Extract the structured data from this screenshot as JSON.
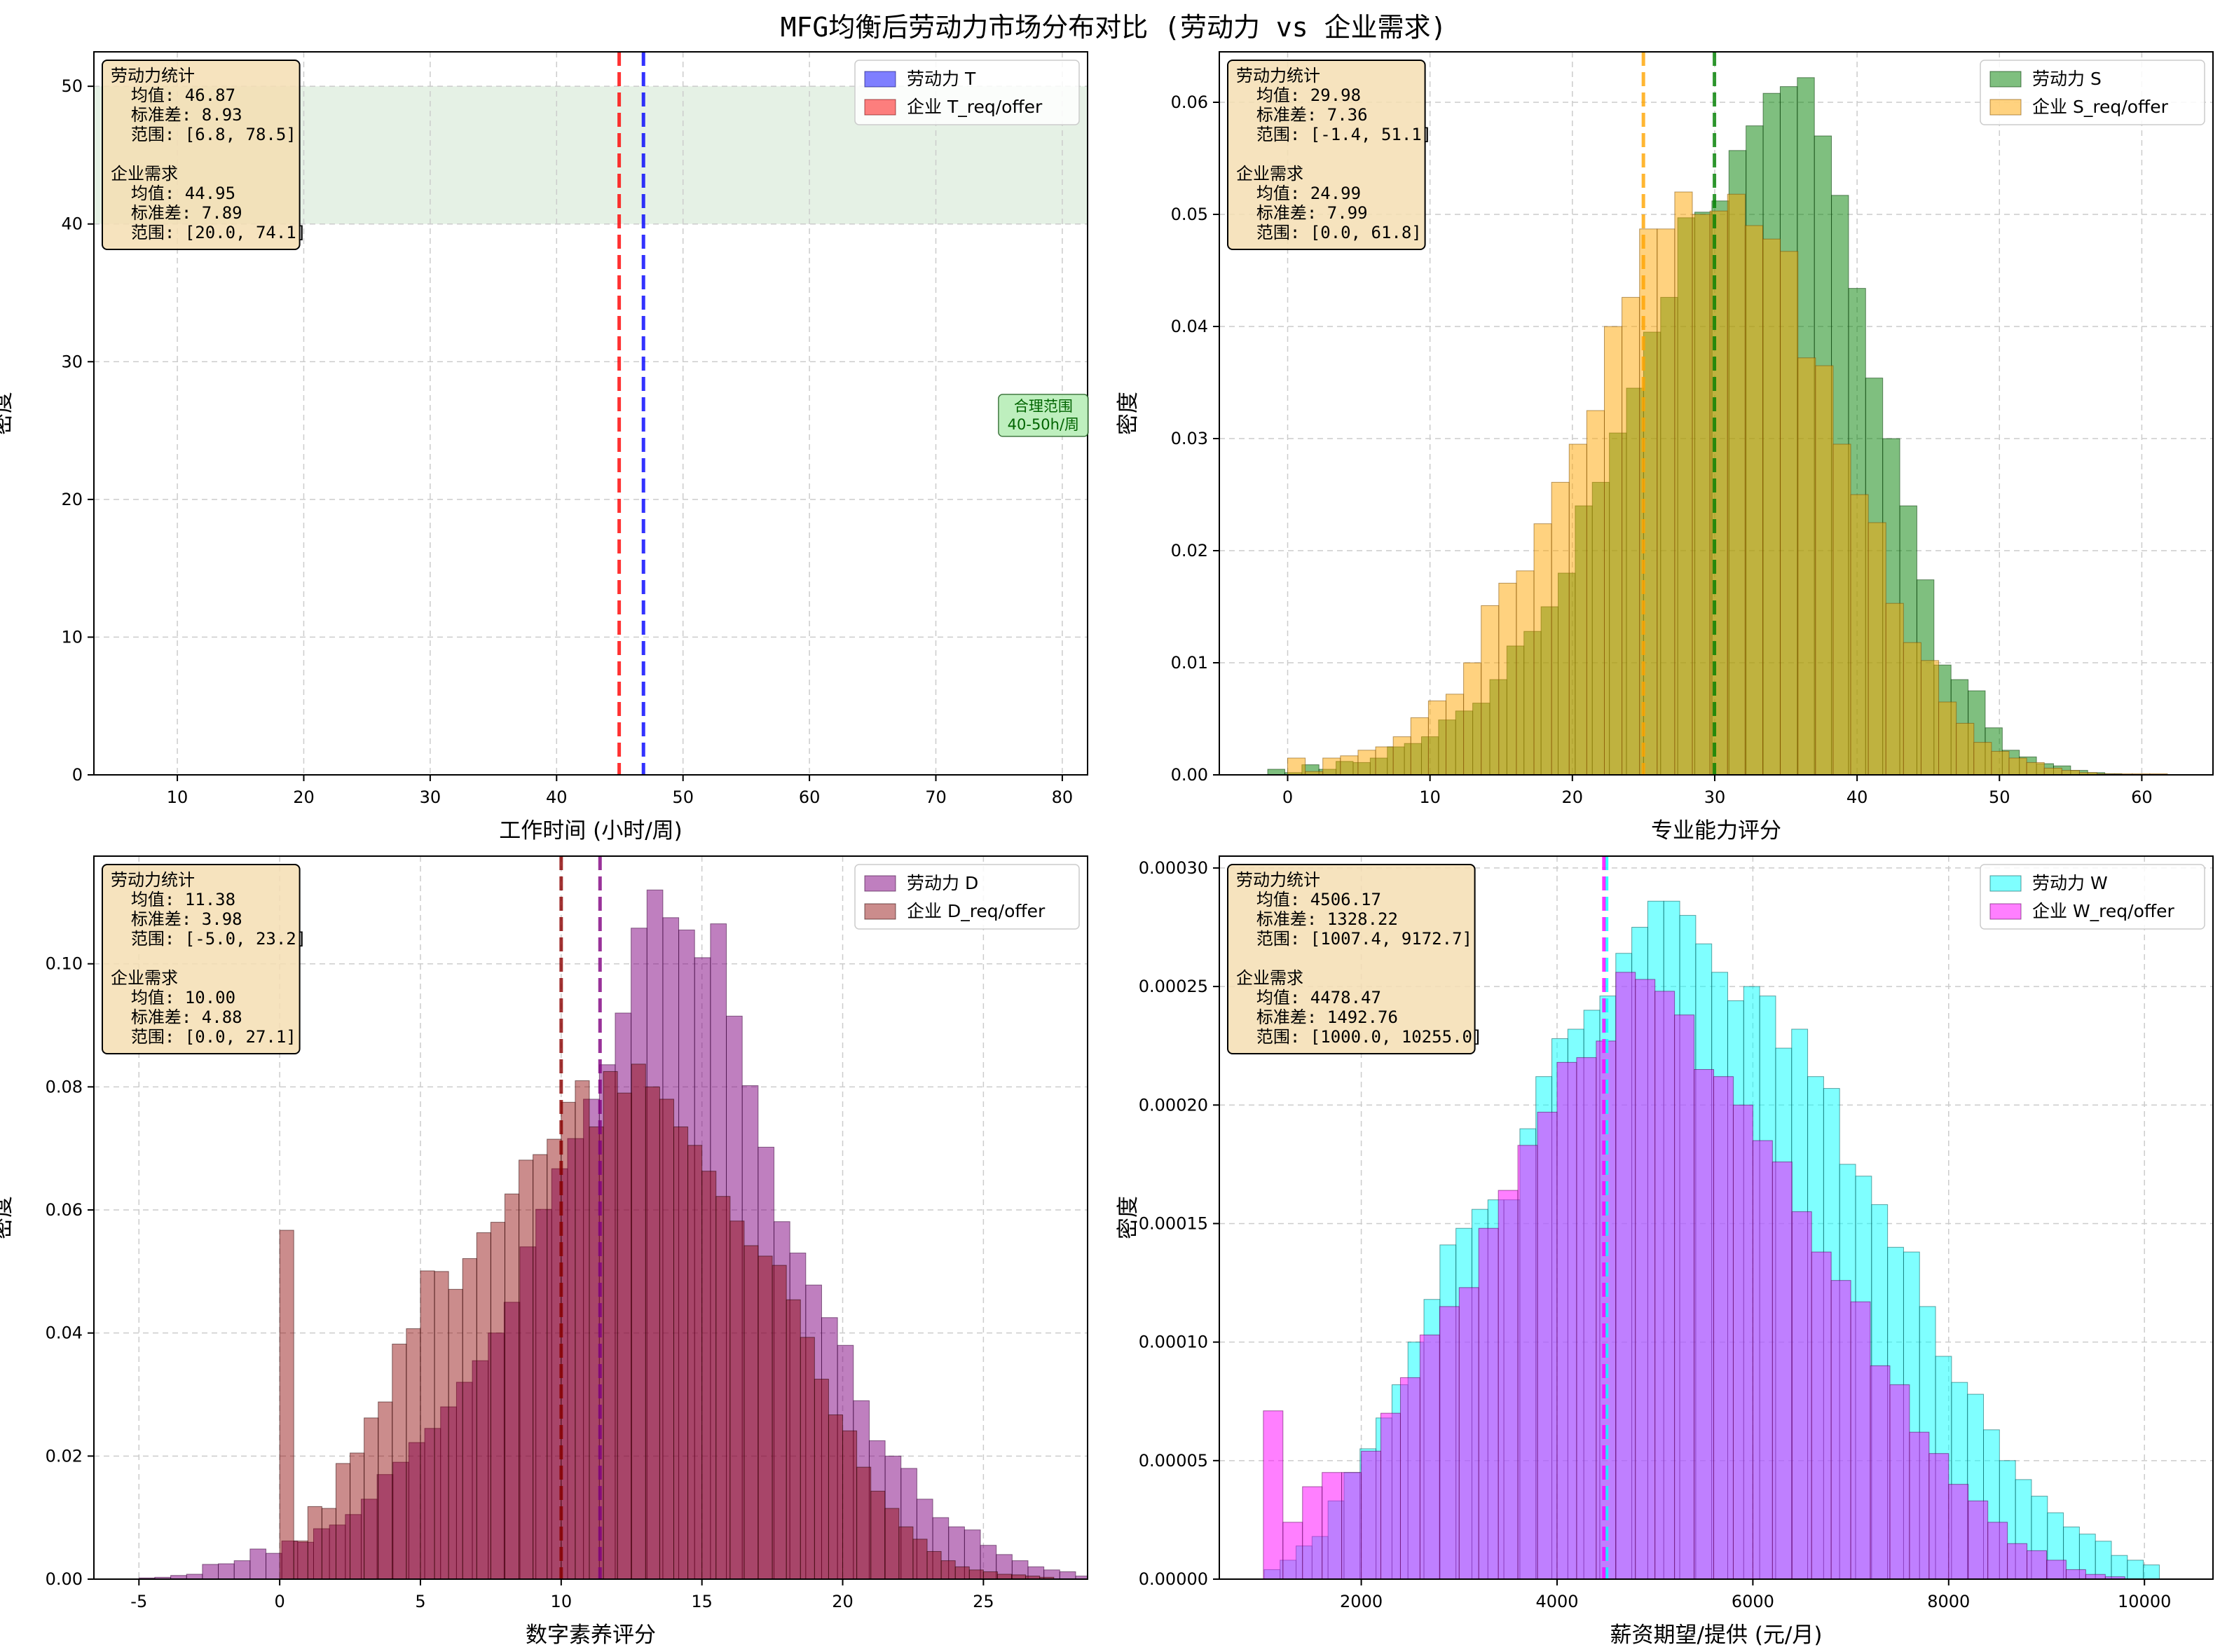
{
  "figure": {
    "title": "MFG均衡后劳动力市场分布对比 (劳动力 vs 企业需求)"
  },
  "chart_data": [
    {
      "type": "histogram",
      "panel": "top-left",
      "xlabel": "工作时间 (小时/周)",
      "ylabel": "密度",
      "xlim": [
        3.4,
        82
      ],
      "ylim": [
        0,
        52.5
      ],
      "xticks": [
        10,
        20,
        30,
        40,
        50,
        60,
        70,
        80
      ],
      "yticks": [
        0,
        10,
        20,
        30,
        40,
        50
      ],
      "tick_decimals": 0,
      "grid": true,
      "legend_position": "top-right",
      "band": {
        "x": [
          3.4,
          82
        ],
        "y": [
          40,
          50
        ],
        "color": "#d4e8d4"
      },
      "band_note": {
        "lines": [
          "合理范围",
          "40-50h/周"
        ],
        "x": 78.5,
        "y": 26
      },
      "series": [
        {
          "name": "劳动力 T",
          "color": "#0000ff",
          "edge": "#000066",
          "opacity": 0.5,
          "start": 0,
          "step": 1,
          "values": []
        },
        {
          "name": "企业 T_req/offer",
          "color": "#ff0000",
          "edge": "#660000",
          "opacity": 0.5,
          "start": 0,
          "step": 1,
          "values": []
        }
      ],
      "mean_lines": [
        {
          "x": 46.87,
          "color": "#0000ff"
        },
        {
          "x": 44.95,
          "color": "#ff0000"
        }
      ],
      "stats_box": [
        "劳动力统计",
        "  均值: 46.87",
        "  标准差: 8.93",
        "  范围: [6.8, 78.5]",
        "",
        "企业需求",
        "  均值: 44.95",
        "  标准差: 7.89",
        "  范围: [20.0, 74.1]"
      ]
    },
    {
      "type": "histogram",
      "panel": "top-right",
      "xlabel": "专业能力评分",
      "ylabel": "密度",
      "xlim": [
        -4.8,
        65
      ],
      "ylim": [
        0,
        0.0645
      ],
      "xticks": [
        0,
        10,
        20,
        30,
        40,
        50,
        60
      ],
      "yticks": [
        0,
        0.01,
        0.02,
        0.03,
        0.04,
        0.05,
        0.06
      ],
      "tick_decimals": 2,
      "grid": true,
      "legend_position": "top-right",
      "series": [
        {
          "name": "劳动力 S",
          "color": "#008000",
          "edge": "#003300",
          "opacity": 0.5,
          "start": -1.4,
          "step": 1.2,
          "values": [
            0.0005,
            0.0002,
            0.0009,
            0.0005,
            0.0012,
            0.0011,
            0.0015,
            0.0025,
            0.0028,
            0.0034,
            0.0049,
            0.0057,
            0.0064,
            0.0085,
            0.0115,
            0.0128,
            0.015,
            0.018,
            0.024,
            0.0261,
            0.0305,
            0.0345,
            0.0395,
            0.0426,
            0.0497,
            0.0502,
            0.0512,
            0.0557,
            0.0579,
            0.0608,
            0.0614,
            0.0622,
            0.057,
            0.0517,
            0.0434,
            0.0354,
            0.03,
            0.024,
            0.0174,
            0.0098,
            0.0085,
            0.0075,
            0.0042,
            0.0022,
            0.0016,
            0.001,
            0.0008,
            0.0004,
            0.0002,
            0.0001
          ]
        },
        {
          "name": "企业 S_req/offer",
          "color": "#ffa500",
          "edge": "#7a4a00",
          "opacity": 0.5,
          "start": 0.0,
          "step": 1.236,
          "values": [
            0.0015,
            0.0003,
            0.0015,
            0.0017,
            0.0022,
            0.0025,
            0.0034,
            0.0051,
            0.0066,
            0.0072,
            0.01,
            0.0151,
            0.0171,
            0.0182,
            0.0224,
            0.0261,
            0.0295,
            0.0325,
            0.04,
            0.0426,
            0.0487,
            0.0487,
            0.052,
            0.05,
            0.0503,
            0.0518,
            0.049,
            0.0478,
            0.0467,
            0.0372,
            0.0365,
            0.0295,
            0.025,
            0.0225,
            0.0153,
            0.0118,
            0.0102,
            0.0065,
            0.0046,
            0.0029,
            0.0021,
            0.0015,
            0.0011,
            0.0006,
            0.0004,
            0.0002,
            0.0001,
            0.0001,
            0.0001,
            0.0001
          ]
        }
      ],
      "mean_lines": [
        {
          "x": 29.98,
          "color": "#008000"
        },
        {
          "x": 24.99,
          "color": "#ffa500"
        }
      ],
      "stats_box": [
        "劳动力统计",
        "  均值: 29.98",
        "  标准差: 7.36",
        "  范围: [-1.4, 51.1]",
        "",
        "企业需求",
        "  均值: 24.99",
        "  标准差: 7.99",
        "  范围: [0.0, 61.8]"
      ]
    },
    {
      "type": "histogram",
      "panel": "bottom-left",
      "xlabel": "数字素养评分",
      "ylabel": "密度",
      "xlim": [
        -6.6,
        28.7
      ],
      "ylim": [
        0,
        0.1175
      ],
      "xticks": [
        -5,
        0,
        5,
        10,
        15,
        20,
        25
      ],
      "yticks": [
        0,
        0.02,
        0.04,
        0.06,
        0.08,
        0.1
      ],
      "tick_decimals": 2,
      "grid": true,
      "legend_position": "top-right",
      "series": [
        {
          "name": "劳动力 D",
          "color": "#800080",
          "edge": "#330033",
          "opacity": 0.5,
          "start": -5.0,
          "step": 0.564,
          "values": [
            0.0002,
            0.0003,
            0.0006,
            0.0008,
            0.0024,
            0.0025,
            0.003,
            0.0049,
            0.0042,
            0.0062,
            0.006,
            0.0082,
            0.0088,
            0.0105,
            0.013,
            0.017,
            0.019,
            0.0222,
            0.0245,
            0.028,
            0.032,
            0.0355,
            0.04,
            0.045,
            0.054,
            0.0601,
            0.0667,
            0.0716,
            0.078,
            0.0836,
            0.092,
            0.1058,
            0.112,
            0.1075,
            0.1055,
            0.101,
            0.1065,
            0.0915,
            0.0802,
            0.0702,
            0.0581,
            0.053,
            0.0478,
            0.0425,
            0.038,
            0.029,
            0.0225,
            0.02,
            0.018,
            0.013,
            0.01,
            0.0085,
            0.008,
            0.0055,
            0.004,
            0.003,
            0.002,
            0.0015,
            0.0012,
            0.0005
          ]
        },
        {
          "name": "企业 D_req/offer",
          "color": "#8b0000",
          "edge": "#2a0000",
          "opacity": 0.45,
          "start": 0.0,
          "step": 0.5,
          "values": [
            0.0567,
            0.0062,
            0.0118,
            0.0115,
            0.0188,
            0.0205,
            0.0262,
            0.0288,
            0.0382,
            0.0407,
            0.0501,
            0.05,
            0.0471,
            0.0521,
            0.0563,
            0.058,
            0.0626,
            0.0681,
            0.069,
            0.0715,
            0.0775,
            0.081,
            0.0735,
            0.0825,
            0.079,
            0.0837,
            0.08,
            0.078,
            0.0735,
            0.0705,
            0.0663,
            0.0622,
            0.0582,
            0.0542,
            0.0525,
            0.051,
            0.0454,
            0.0393,
            0.0325,
            0.0267,
            0.0241,
            0.0182,
            0.0143,
            0.0115,
            0.0085,
            0.0065,
            0.0045,
            0.003,
            0.002,
            0.0015,
            0.0012,
            0.0008,
            0.0007,
            0.0005,
            0.0003
          ]
        }
      ],
      "mean_lines": [
        {
          "x": 11.38,
          "color": "#800080"
        },
        {
          "x": 10.0,
          "color": "#8b0000"
        }
      ],
      "stats_box": [
        "劳动力统计",
        "  均值: 11.38",
        "  标准差: 3.98",
        "  范围: [-5.0, 23.2]",
        "",
        "企业需求",
        "  均值: 10.00",
        "  标准差: 4.88",
        "  范围: [0.0, 27.1]"
      ]
    },
    {
      "type": "histogram",
      "panel": "bottom-right",
      "xlabel": "薪资期望/提供 (元/月)",
      "ylabel": "密度",
      "xlim": [
        550,
        10700
      ],
      "ylim": [
        0,
        0.000305
      ],
      "xticks": [
        2000,
        4000,
        6000,
        8000,
        10000
      ],
      "yticks": [
        0,
        5e-05,
        0.0001,
        0.00015,
        0.0002,
        0.00025,
        0.0003
      ],
      "tick_decimals": 5,
      "grid": true,
      "legend_position": "top-right",
      "series": [
        {
          "name": "劳动力 W",
          "color": "#00ffff",
          "edge": "#005555",
          "opacity": 0.5,
          "start": 1007.4,
          "step": 163.3,
          "values": [
            4e-06,
            8e-06,
            1.4e-05,
            1.8e-05,
            3.3e-05,
            4.5e-05,
            5.5e-05,
            6.8e-05,
            8.2e-05,
            0.0001,
            0.000118,
            0.000141,
            0.000148,
            0.000156,
            0.00016,
            0.00016,
            0.00019,
            0.000212,
            0.000228,
            0.000232,
            0.00024,
            0.000246,
            0.000264,
            0.000275,
            0.000286,
            0.000286,
            0.00028,
            0.000268,
            0.000256,
            0.000244,
            0.00025,
            0.000246,
            0.000224,
            0.000232,
            0.000212,
            0.000207,
            0.000175,
            0.00017,
            0.000158,
            0.00014,
            0.000138,
            0.000115,
            9.4e-05,
            8.3e-05,
            7.8e-05,
            6.3e-05,
            5e-05,
            4.2e-05,
            3.5e-05,
            2.8e-05,
            2.2e-05,
            1.9e-05,
            1.6e-05,
            1e-05,
            8e-06,
            6e-06
          ]
        },
        {
          "name": "企业 W_req/offer",
          "color": "#ff00ff",
          "edge": "#550055",
          "opacity": 0.5,
          "start": 1000.0,
          "step": 200.0,
          "values": [
            7.1e-05,
            2.4e-05,
            3.9e-05,
            4.5e-05,
            4.5e-05,
            5.4e-05,
            7e-05,
            8.5e-05,
            0.000103,
            0.000115,
            0.000123,
            0.000148,
            0.000164,
            0.000183,
            0.000197,
            0.000218,
            0.00022,
            0.000227,
            0.000256,
            0.000253,
            0.000248,
            0.000238,
            0.000215,
            0.000212,
            0.0002,
            0.000185,
            0.000176,
            0.000155,
            0.000138,
            0.000126,
            0.000117,
            9e-05,
            8.2e-05,
            6.2e-05,
            5.3e-05,
            4e-05,
            3.3e-05,
            2.4e-05,
            1.5e-05,
            1.2e-05,
            8e-06,
            4e-06,
            2e-06,
            1e-06
          ]
        }
      ],
      "mean_lines": [
        {
          "x": 4506.17,
          "color": "#00ffff"
        },
        {
          "x": 4478.47,
          "color": "#ff00ff"
        }
      ],
      "stats_box": [
        "劳动力统计",
        "  均值: 4506.17",
        "  标准差: 1328.22",
        "  范围: [1007.4, 9172.7]",
        "",
        "企业需求",
        "  均值: 4478.47",
        "  标准差: 1492.76",
        "  范围: [1000.0, 10255.0]"
      ]
    }
  ]
}
